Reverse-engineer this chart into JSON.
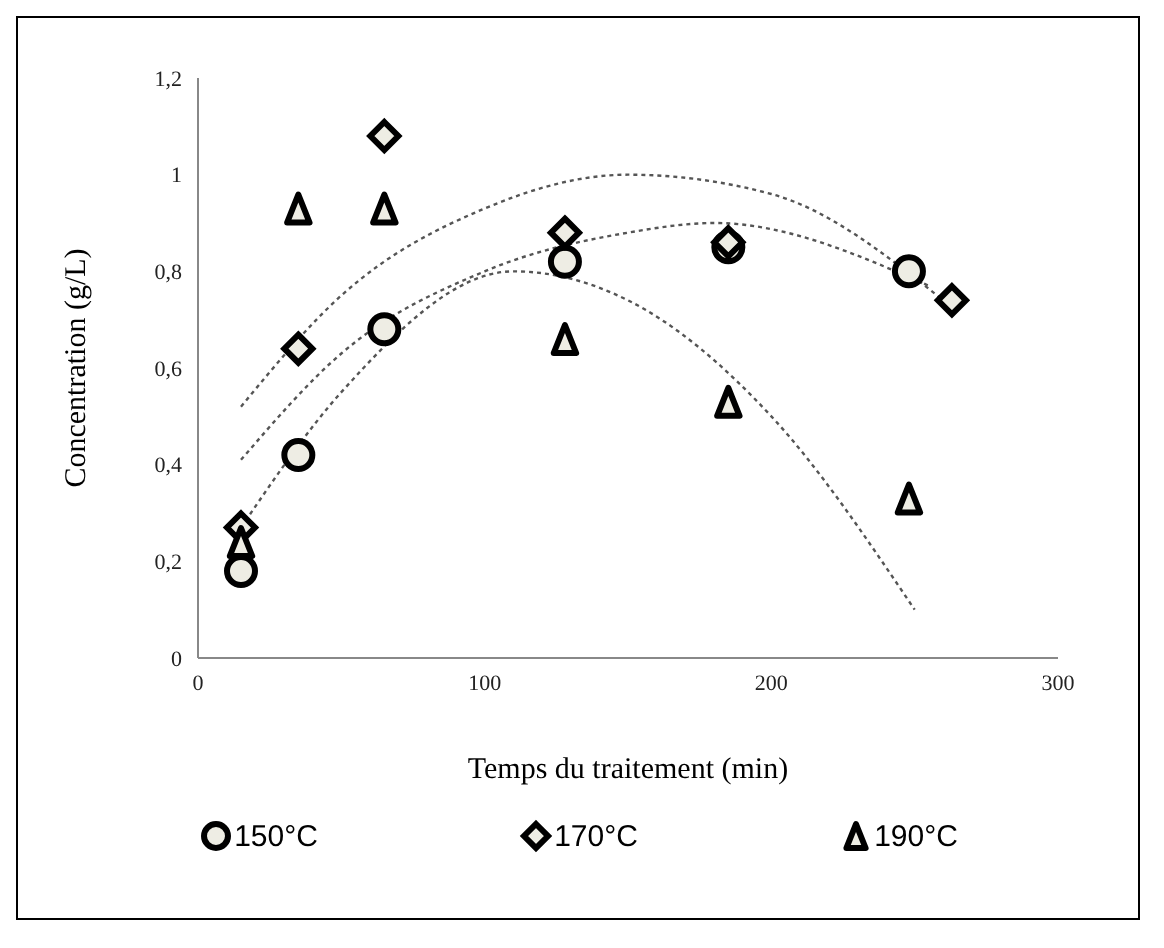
{
  "chart_data": {
    "type": "scatter",
    "xlabel": "Temps du traitement (min)",
    "ylabel": "Concentration (g/L)",
    "xlim": [
      0,
      300
    ],
    "xticks": [
      0,
      100,
      200,
      300
    ],
    "ylim": [
      0,
      1.2
    ],
    "yticks": [
      0,
      {
        "value": 0.2,
        "label": "0,2"
      },
      {
        "value": 0.4,
        "label": "0,4"
      },
      {
        "value": 0.6,
        "label": "0,6"
      },
      {
        "value": 0.8,
        "label": "0,8"
      },
      1,
      {
        "value": 1.2,
        "label": "1,2"
      }
    ],
    "grid": false,
    "legend": "bottom",
    "series": [
      {
        "name": "150°C",
        "marker": "circle",
        "color": "#000000",
        "x": [
          15,
          35,
          65,
          128,
          185,
          248
        ],
        "values": [
          0.18,
          0.42,
          0.68,
          0.82,
          0.85,
          0.8
        ]
      },
      {
        "name": "170°C",
        "marker": "diamond",
        "color": "#000000",
        "x": [
          15,
          35,
          65,
          128,
          185,
          263
        ],
        "values": [
          0.27,
          0.64,
          1.08,
          0.88,
          0.86,
          0.74
        ]
      },
      {
        "name": "190°C",
        "marker": "triangle",
        "color": "#000000",
        "x": [
          15,
          35,
          65,
          128,
          185,
          248
        ],
        "values": [
          0.24,
          0.93,
          0.93,
          0.66,
          0.53,
          0.33
        ]
      },
      {
        "type": "line",
        "marker": "none",
        "line_style": "dotted",
        "color": "#555555",
        "x": [
          15,
          50,
          100,
          150,
          200,
          260
        ],
        "values": [
          0.52,
          0.75,
          0.93,
          1.0,
          0.96,
          0.74
        ]
      },
      {
        "type": "line",
        "marker": "none",
        "line_style": "dotted",
        "color": "#555555",
        "x": [
          15,
          50,
          100,
          150,
          180,
          255
        ],
        "values": [
          0.41,
          0.63,
          0.8,
          0.88,
          0.9,
          0.77
        ]
      },
      {
        "type": "line",
        "marker": "none",
        "line_style": "dotted",
        "color": "#555555",
        "x": [
          15,
          50,
          110,
          150,
          200,
          250
        ],
        "values": [
          0.27,
          0.55,
          0.8,
          0.74,
          0.5,
          0.1
        ]
      }
    ]
  }
}
